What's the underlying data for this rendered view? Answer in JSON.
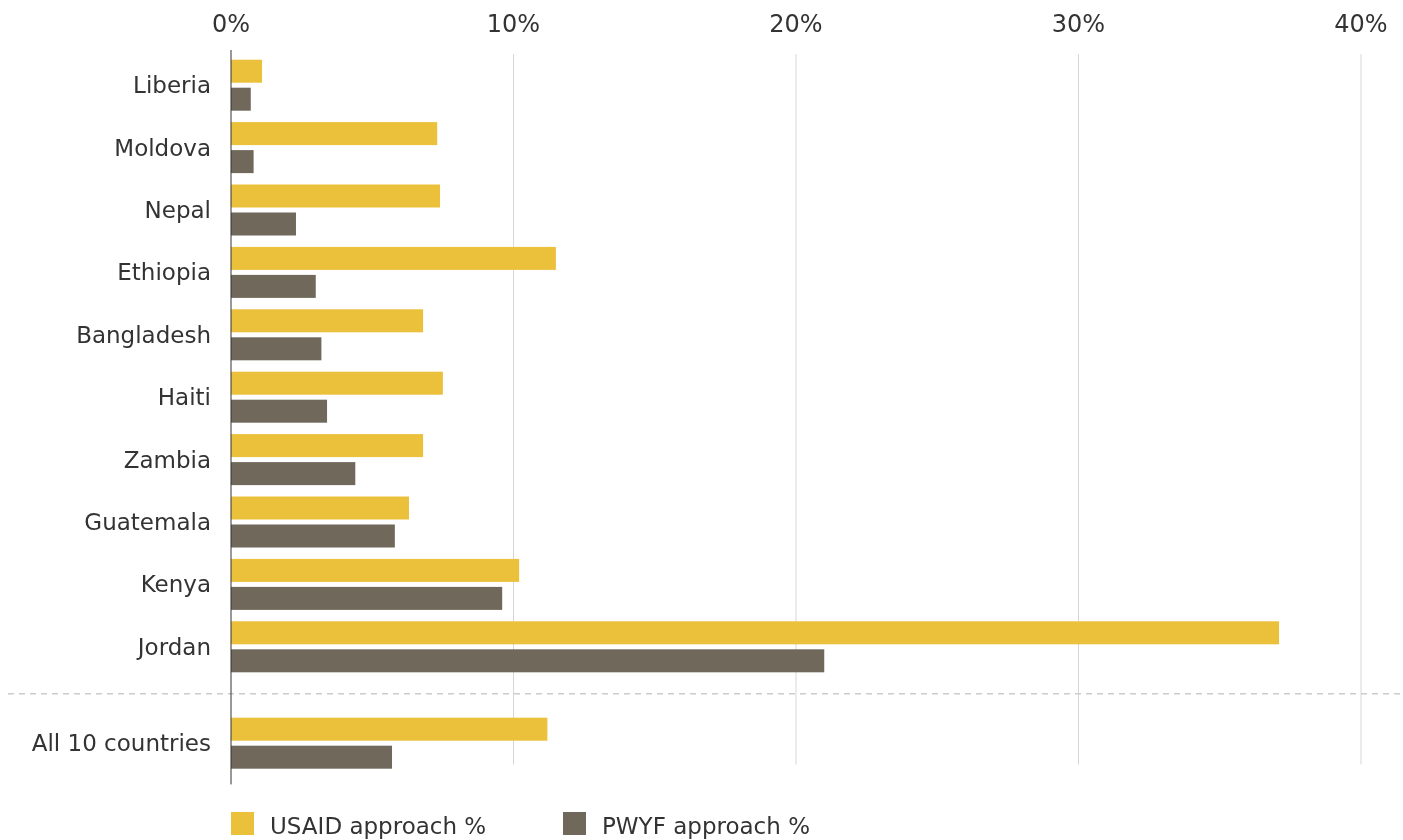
{
  "chart_data": {
    "type": "bar",
    "orientation": "horizontal",
    "categories": [
      "Liberia",
      "Moldova",
      "Nepal",
      "Ethiopia",
      "Bangladesh",
      "Haiti",
      "Zambia",
      "Guatemala",
      "Kenya",
      "Jordan",
      "All 10 countries"
    ],
    "series": [
      {
        "name": "USAID approach %",
        "color": "#ebc03b",
        "values": [
          1.1,
          7.3,
          7.4,
          11.5,
          6.8,
          7.5,
          6.8,
          6.3,
          10.2,
          37.1,
          11.2
        ]
      },
      {
        "name": "PWYF approach %",
        "color": "#70695b",
        "values": [
          0.7,
          0.8,
          2.3,
          3.0,
          3.2,
          3.4,
          4.4,
          5.8,
          9.6,
          21.0,
          5.7
        ]
      }
    ],
    "xlim": [
      0,
      40
    ],
    "xticks": [
      {
        "value": 0,
        "label": "0%"
      },
      {
        "value": 10,
        "label": "10%"
      },
      {
        "value": 20,
        "label": "20%"
      },
      {
        "value": 30,
        "label": "30%"
      },
      {
        "value": 40,
        "label": "40%"
      }
    ],
    "grid": "x",
    "legend": "bottom"
  }
}
